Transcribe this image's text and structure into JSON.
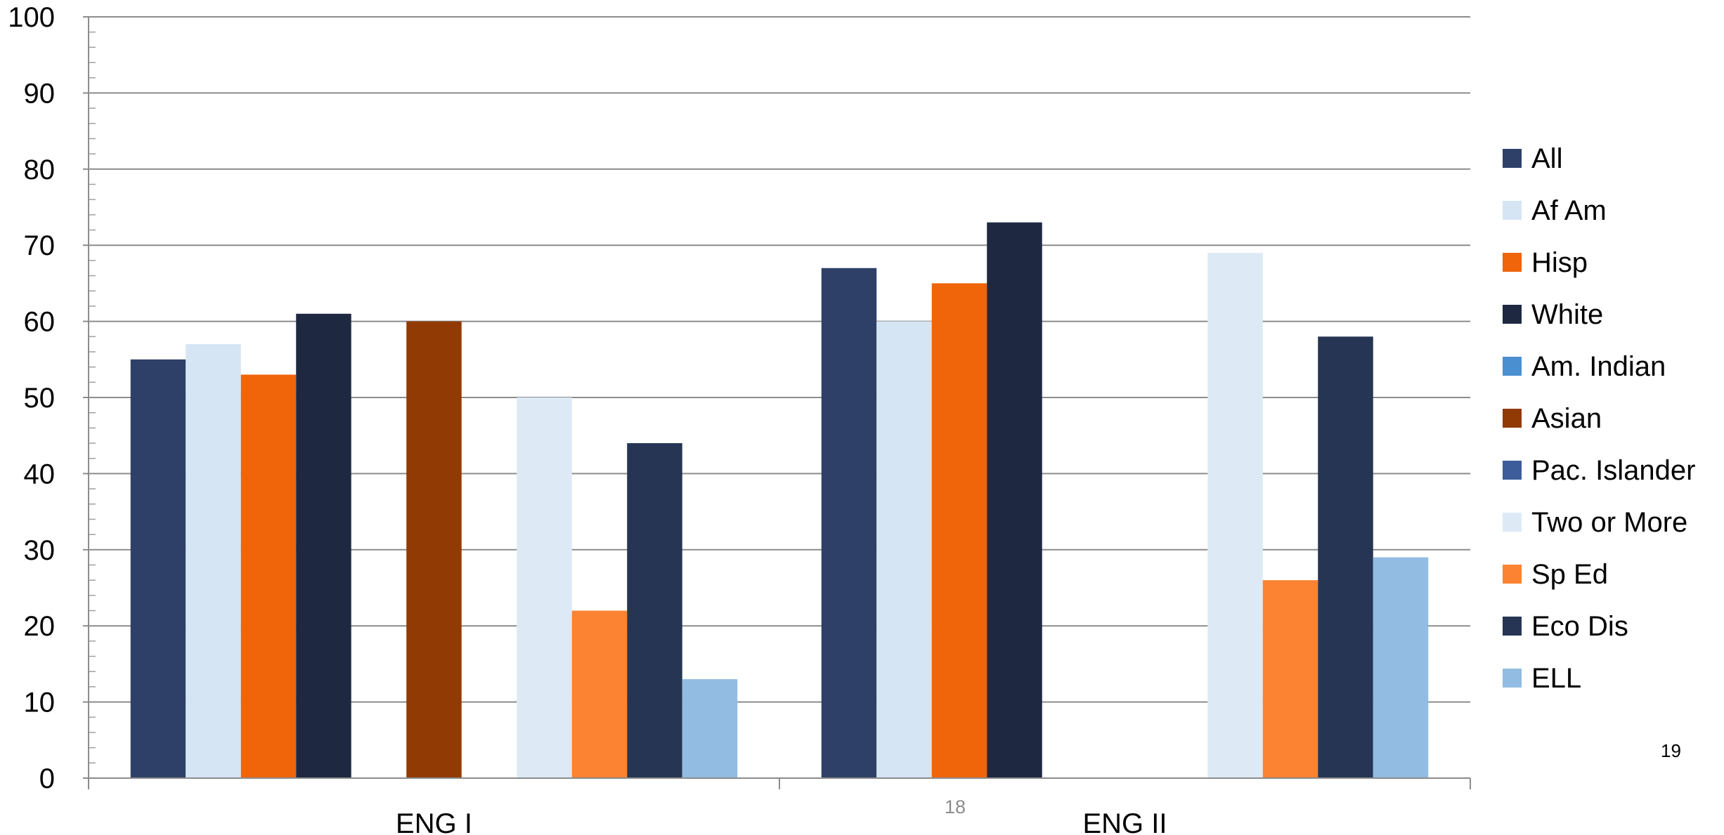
{
  "chart_data": {
    "type": "bar",
    "categories": [
      "ENG I",
      "ENG II"
    ],
    "ylim": [
      0,
      100
    ],
    "yticks": [
      0,
      10,
      20,
      30,
      40,
      50,
      60,
      70,
      80,
      90,
      100
    ],
    "grid": true,
    "legend_position": "right",
    "series": [
      {
        "name": "All",
        "color": "#2E4068",
        "values": [
          55,
          67
        ]
      },
      {
        "name": "Af Am",
        "color": "#D6E5F4",
        "values": [
          57,
          60
        ]
      },
      {
        "name": "Hisp",
        "color": "#F0640A",
        "values": [
          53,
          65
        ]
      },
      {
        "name": "White",
        "color": "#1E2841",
        "values": [
          61,
          73
        ]
      },
      {
        "name": "Am. Indian",
        "color": "#4A8FD0",
        "values": [
          null,
          null
        ]
      },
      {
        "name": "Asian",
        "color": "#923A04",
        "values": [
          60,
          null
        ]
      },
      {
        "name": "Pac. Islander",
        "color": "#3D5C9A",
        "values": [
          null,
          null
        ]
      },
      {
        "name": "Two or More",
        "color": "#DDEAF6",
        "values": [
          50,
          69
        ]
      },
      {
        "name": "Sp Ed",
        "color": "#FC8332",
        "values": [
          22,
          26
        ]
      },
      {
        "name": "Eco Dis",
        "color": "#263553",
        "values": [
          44,
          58
        ]
      },
      {
        "name": "ELL",
        "color": "#92BCE1",
        "values": [
          13,
          29
        ]
      }
    ]
  },
  "slide_numbers": {
    "inner": "18",
    "outer": "19"
  }
}
